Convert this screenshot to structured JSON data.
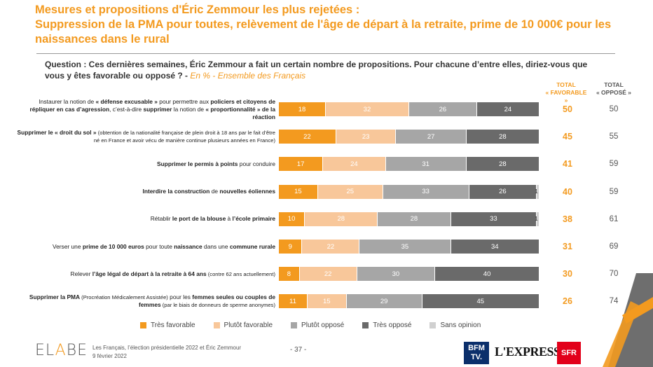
{
  "title": {
    "line1": "Mesures et propositions d'Éric Zemmour les plus rejetées :",
    "line2": "Suppression de la PMA pour toutes, relèvement de l'âge de départ à la retraite, prime de 10 000€ pour les naissances dans le rural"
  },
  "question": {
    "text": "Question : Ces dernières semaines, Éric Zemmour a fait un certain nombre de propositions. Pour chacune d’entre elles, diriez-vous que vous y êtes favorable ou opposé ? - ",
    "sub": "En % - Ensemble des Français"
  },
  "headers": {
    "fav_line1": "TOTAL",
    "fav_line2": "« FAVORABLE »",
    "opp_line1": "TOTAL",
    "opp_line2": "« OPPOSÉ »"
  },
  "colors": {
    "tres_favorable": "#f39a1f",
    "plutot_favorable": "#f8c79a",
    "plutot_oppose": "#a6a6a6",
    "tres_oppose": "#6a6a6a",
    "sans_opinion": "#d0d0d0"
  },
  "row_labels": [
    {
      "parts": [
        [
          "",
          "Instaurer la notion de "
        ],
        [
          "b",
          "« défense excusable »"
        ],
        [
          "",
          " pour permettre aux "
        ],
        [
          "b",
          "policiers et citoyens de répliquer en cas d’agression"
        ],
        [
          "",
          ", c’est-à-dire "
        ],
        [
          "b",
          "supprimer"
        ],
        [
          "",
          " la notion de "
        ],
        [
          "b",
          "« proportionnalité » de la réaction"
        ]
      ]
    },
    {
      "parts": [
        [
          "b",
          "Supprimer le « droit du sol »"
        ],
        [
          "s",
          " (obtention de la nationalité française de plein droit à 18 ans par le fait d’être né en France et avoir vécu de manière continue plusieurs années en France)"
        ]
      ]
    },
    {
      "parts": [
        [
          "b",
          "Supprimer le permis à points"
        ],
        [
          "",
          " pour conduire"
        ]
      ]
    },
    {
      "parts": [
        [
          "b",
          "Interdire la construction"
        ],
        [
          "",
          " de "
        ],
        [
          "b",
          "nouvelles éoliennes"
        ]
      ]
    },
    {
      "parts": [
        [
          "",
          "Rétablir "
        ],
        [
          "b",
          "le port de la blouse"
        ],
        [
          "",
          " à "
        ],
        [
          "b",
          "l’école primaire"
        ]
      ]
    },
    {
      "parts": [
        [
          "",
          "Verser une "
        ],
        [
          "b",
          "prime de 10 000 euros"
        ],
        [
          "",
          " pour toute "
        ],
        [
          "b",
          "naissance"
        ],
        [
          "",
          " dans une "
        ],
        [
          "b",
          "commune rurale"
        ]
      ]
    },
    {
      "parts": [
        [
          "",
          "Relever "
        ],
        [
          "b",
          "l’âge légal de départ à la retraite à 64 ans"
        ],
        [
          "s",
          " (contre 62 ans actuellement)"
        ]
      ]
    },
    {
      "parts": [
        [
          "b",
          "Supprimer la PMA"
        ],
        [
          "s",
          " (Procréation Médicalement Assistée)"
        ],
        [
          "",
          " pour les "
        ],
        [
          "b",
          "femmes seules ou couples de femmes"
        ],
        [
          "s",
          " (par le biais de donneurs de sperme anonymes)"
        ]
      ]
    }
  ],
  "chart_data": {
    "type": "bar",
    "orientation": "horizontal",
    "stacked": true,
    "unit": "%",
    "categories": [
      "Instaurer la notion de « défense excusable »",
      "Supprimer le « droit du sol »",
      "Supprimer le permis à points",
      "Interdire la construction de nouvelles éoliennes",
      "Rétablir le port de la blouse à l’école primaire",
      "Verser une prime de 10 000 euros pour toute naissance dans une commune rurale",
      "Relever l’âge légal de départ à la retraite à 64 ans",
      "Supprimer la PMA pour les femmes seules ou couples de femmes"
    ],
    "series": [
      {
        "name": "Très favorable",
        "color": "#f39a1f",
        "values": [
          18,
          22,
          17,
          15,
          10,
          9,
          8,
          11
        ]
      },
      {
        "name": "Plutôt favorable",
        "color": "#f8c79a",
        "values": [
          32,
          23,
          24,
          25,
          28,
          22,
          22,
          15
        ]
      },
      {
        "name": "Plutôt opposé",
        "color": "#a6a6a6",
        "values": [
          26,
          27,
          31,
          33,
          28,
          35,
          30,
          29
        ]
      },
      {
        "name": "Très opposé",
        "color": "#6a6a6a",
        "values": [
          24,
          28,
          28,
          26,
          33,
          34,
          40,
          45
        ]
      },
      {
        "name": "Sans opinion",
        "color": "#d0d0d0",
        "values": [
          0,
          0,
          0,
          1,
          1,
          0,
          0,
          0
        ]
      }
    ],
    "total_favorable": [
      50,
      45,
      41,
      40,
      38,
      31,
      30,
      26
    ],
    "total_oppose": [
      50,
      55,
      59,
      59,
      61,
      69,
      70,
      74
    ],
    "xlim": [
      0,
      100
    ],
    "legend_position": "bottom"
  },
  "footer": {
    "logo": "ELABE",
    "line1": "Les Français, l’élection présidentielle 2022 et Éric Zemmour",
    "line2": "9 février 2022",
    "page": "- 37 -",
    "bfm_line1": "BFM",
    "bfm_line2": "TV.",
    "express": "L'EXPRESS",
    "sfr": "SFR"
  }
}
